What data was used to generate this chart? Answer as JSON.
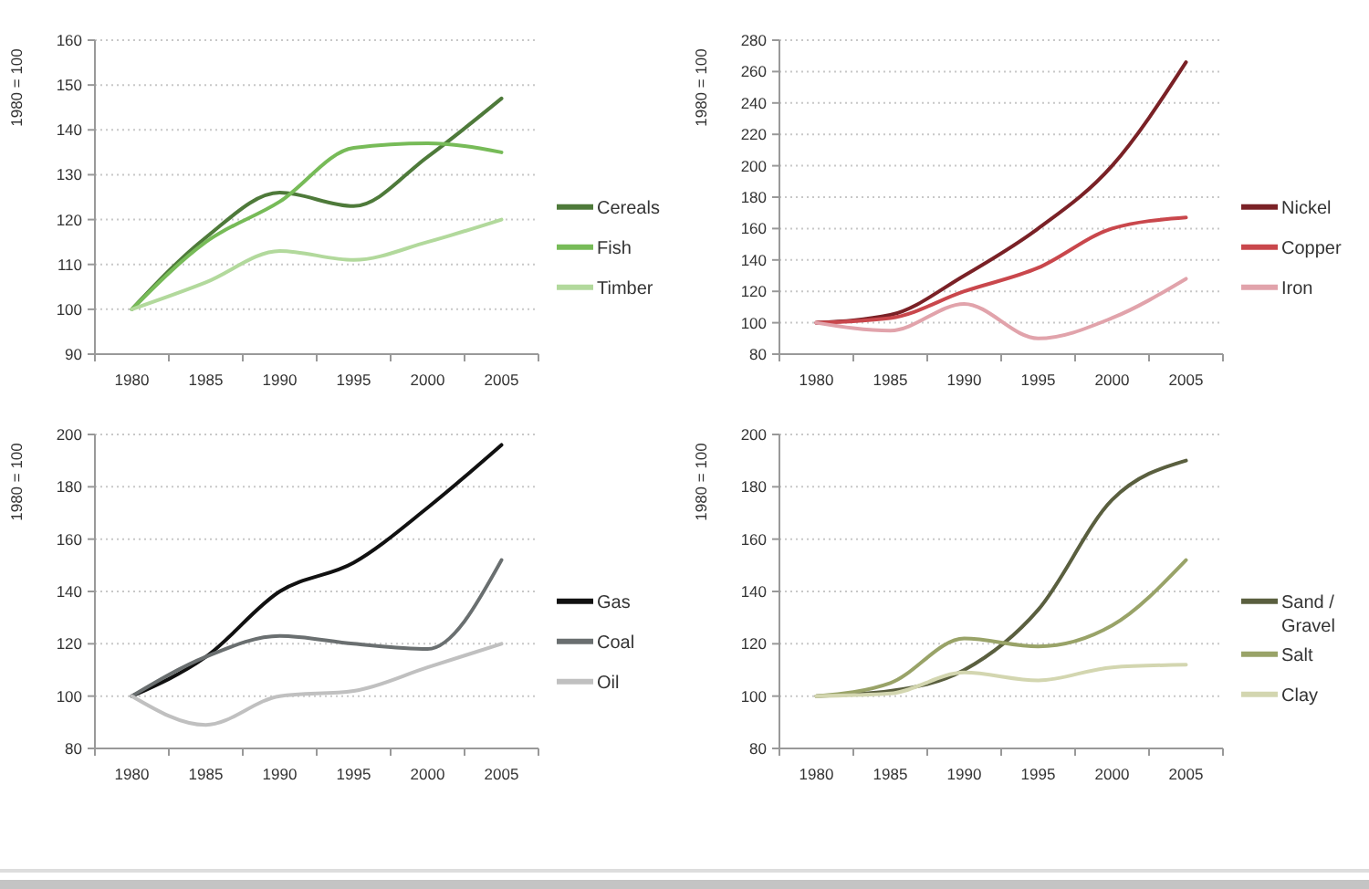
{
  "chart_data": [
    {
      "type": "line",
      "ylabel": "1980 = 100",
      "categories": [
        "1980",
        "1985",
        "1990",
        "1995",
        "2000",
        "2005"
      ],
      "ylim": [
        90,
        160
      ],
      "yticks": [
        90,
        100,
        110,
        120,
        130,
        140,
        150,
        160
      ],
      "grid": "y",
      "legend": "right",
      "marker": "none",
      "series": [
        {
          "name": "Cereals",
          "color": "#4e7a3a",
          "values": [
            100,
            116,
            126,
            123,
            134,
            147
          ]
        },
        {
          "name": "Fish",
          "color": "#77bb58",
          "values": [
            100,
            115,
            124,
            136,
            137,
            135
          ]
        },
        {
          "name": "Timber",
          "color": "#b2d99c",
          "values": [
            100,
            106,
            113,
            111,
            115,
            120
          ]
        }
      ]
    },
    {
      "type": "line",
      "ylabel": "1980 = 100",
      "categories": [
        "1980",
        "1985",
        "1990",
        "1995",
        "2000",
        "2005"
      ],
      "ylim": [
        80,
        280
      ],
      "yticks": [
        80,
        100,
        120,
        140,
        160,
        180,
        200,
        220,
        240,
        260,
        280
      ],
      "grid": "y",
      "legend": "right",
      "marker": "none",
      "series": [
        {
          "name": "Nickel",
          "color": "#7a2126",
          "values": [
            100,
            105,
            130,
            160,
            200,
            266
          ]
        },
        {
          "name": "Copper",
          "color": "#c9474c",
          "values": [
            100,
            103,
            120,
            135,
            160,
            167
          ]
        },
        {
          "name": "Iron",
          "color": "#e1a3ab",
          "values": [
            100,
            95,
            112,
            90,
            103,
            128
          ]
        }
      ]
    },
    {
      "type": "line",
      "ylabel": "1980 = 100",
      "categories": [
        "1980",
        "1985",
        "1990",
        "1995",
        "2000",
        "2005"
      ],
      "ylim": [
        80,
        200
      ],
      "yticks": [
        80,
        100,
        120,
        140,
        160,
        180,
        200
      ],
      "grid": "y",
      "legend": "right",
      "marker": "none",
      "series": [
        {
          "name": "Gas",
          "color": "#111111",
          "values": [
            100,
            115,
            140,
            151,
            172,
            196
          ]
        },
        {
          "name": "Coal",
          "color": "#6a6f70",
          "values": [
            100,
            115,
            123,
            120,
            118,
            152
          ]
        },
        {
          "name": "Oil",
          "color": "#c0c0c0",
          "values": [
            100,
            89,
            100,
            102,
            111,
            120
          ]
        }
      ]
    },
    {
      "type": "line",
      "ylabel": "1980 = 100",
      "categories": [
        "1980",
        "1985",
        "1990",
        "1995",
        "2000",
        "2005"
      ],
      "ylim": [
        80,
        200
      ],
      "yticks": [
        80,
        100,
        120,
        140,
        160,
        180,
        200
      ],
      "grid": "y",
      "legend": "right",
      "marker": "none",
      "series": [
        {
          "name": "Sand / Gravel",
          "color": "#5a5f3f",
          "values": [
            100,
            102,
            110,
            133,
            175,
            190
          ]
        },
        {
          "name": "Salt",
          "color": "#99a368",
          "values": [
            100,
            105,
            122,
            119,
            127,
            152
          ]
        },
        {
          "name": "Clay",
          "color": "#d3d6b0",
          "values": [
            100,
            101,
            109,
            106,
            111,
            112
          ]
        }
      ]
    }
  ]
}
